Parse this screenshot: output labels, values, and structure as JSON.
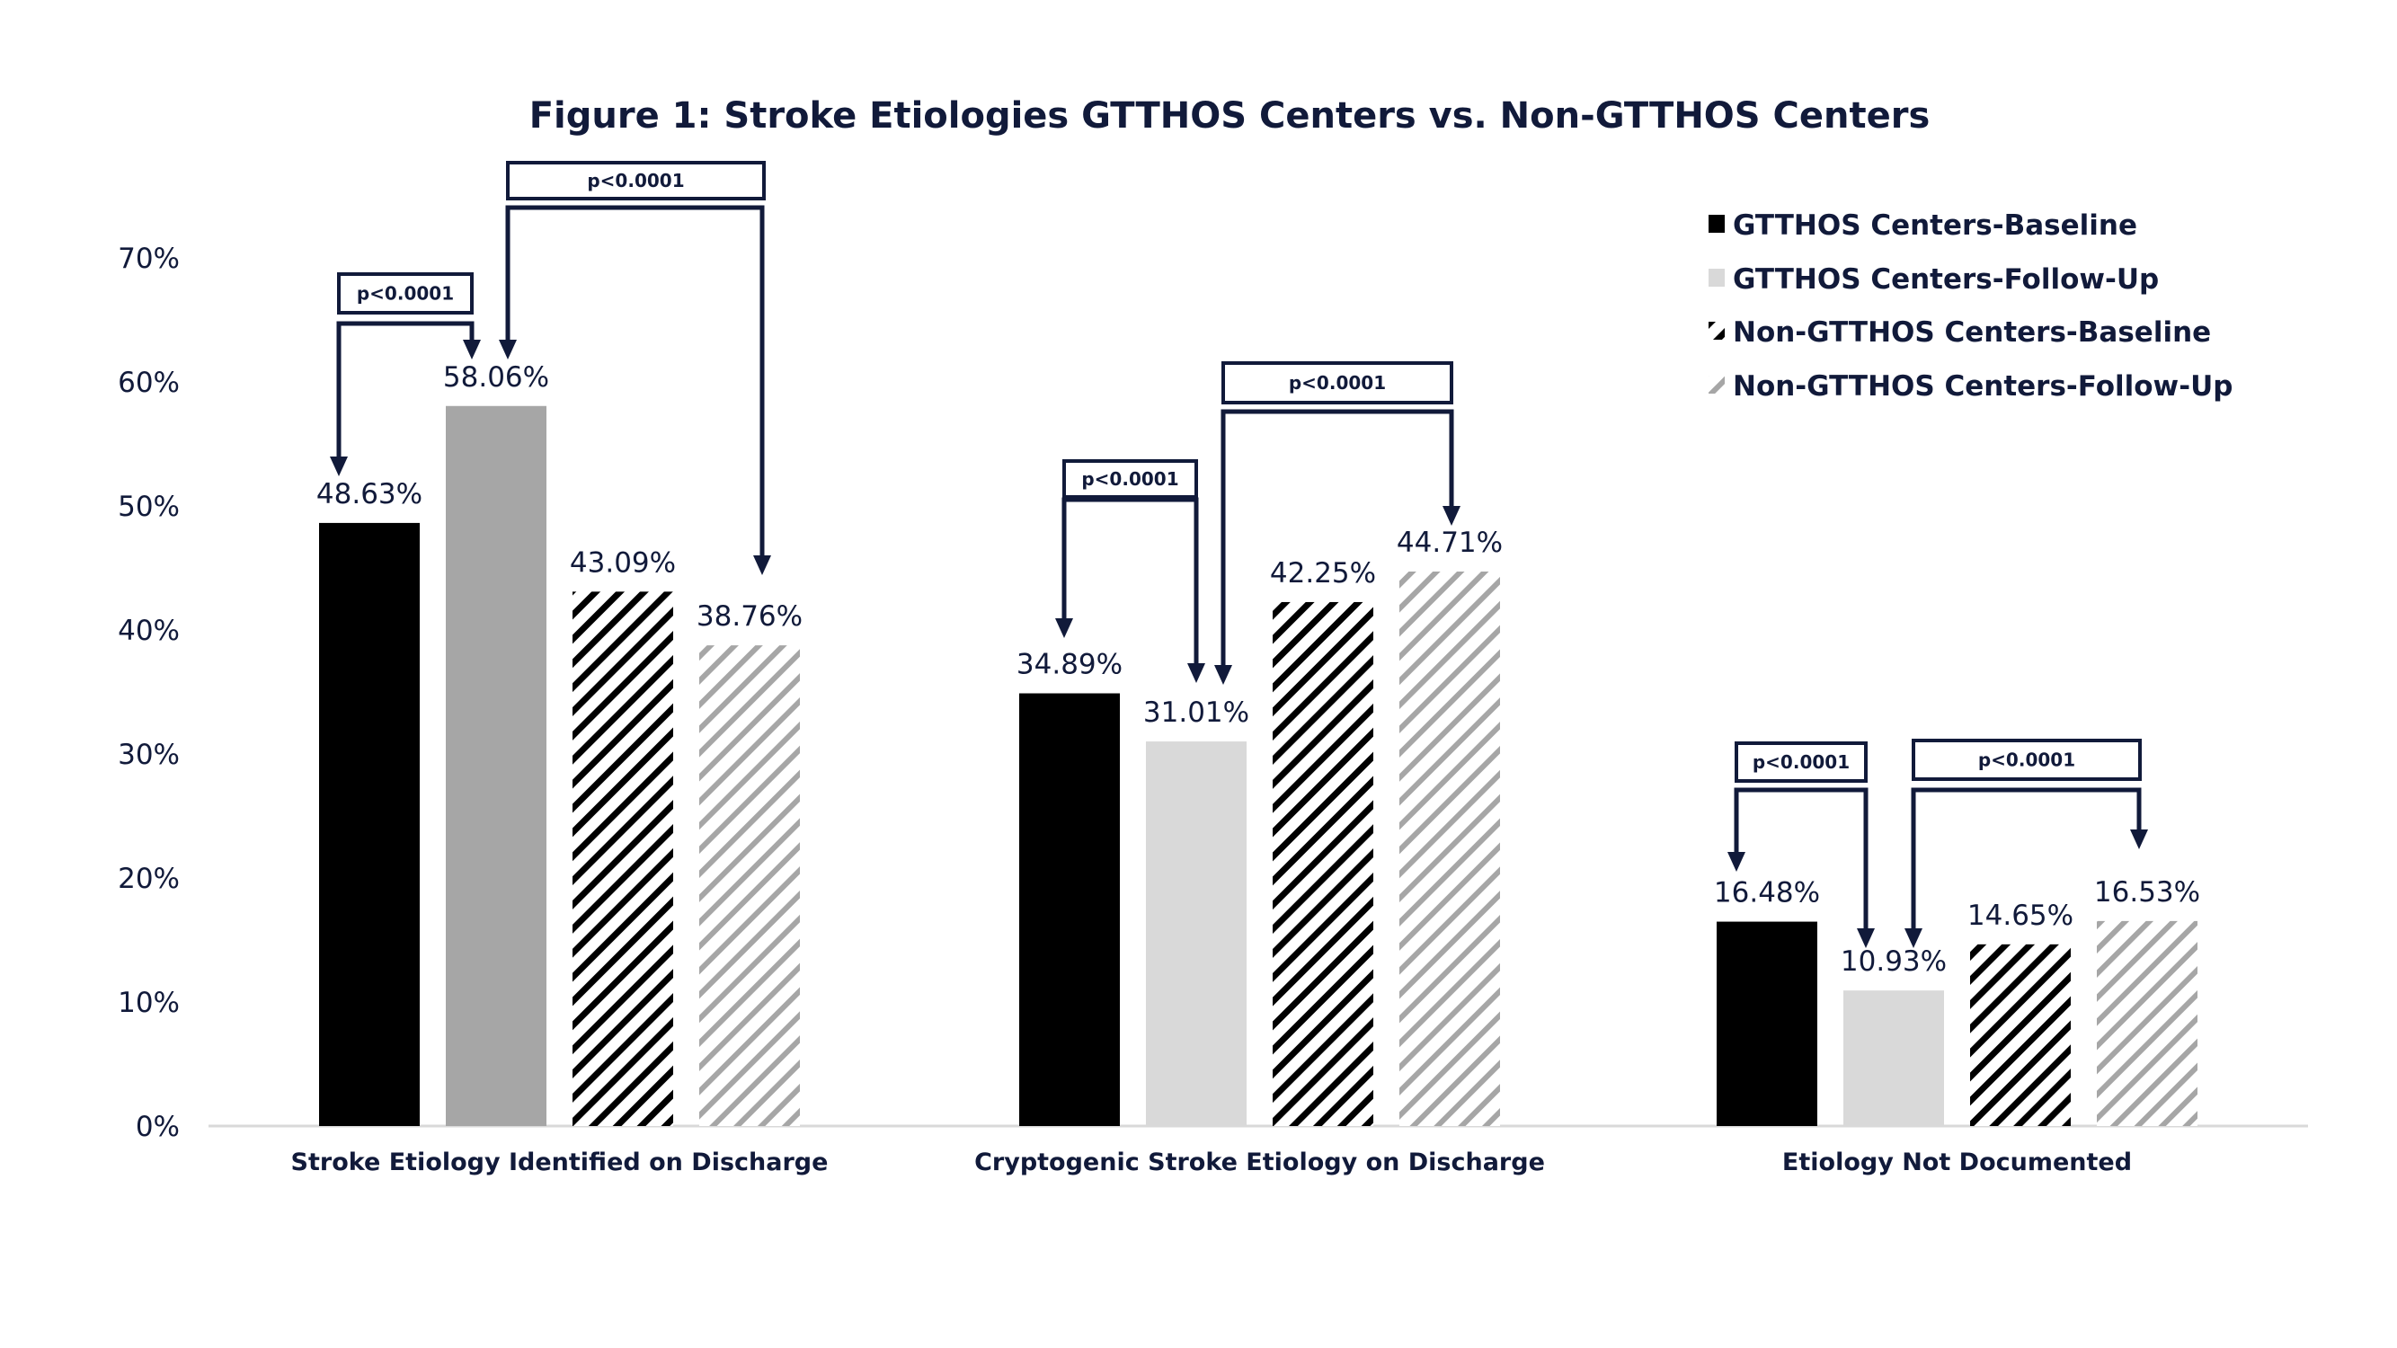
{
  "chart_data": {
    "type": "bar",
    "title": "Figure 1: Stroke Etiologies GTTHOS Centers vs. Non-GTTHOS Centers",
    "xlabel": "",
    "ylabel": "",
    "ylim": [
      0,
      70
    ],
    "yticks": [
      "0%",
      "10%",
      "20%",
      "30%",
      "40%",
      "50%",
      "60%",
      "70%"
    ],
    "ytick_values": [
      0,
      10,
      20,
      30,
      40,
      50,
      60,
      70
    ],
    "grid": false,
    "legend_position": "top-right",
    "categories": [
      "Stroke Etiology Identified on Discharge",
      "Cryptogenic Stroke Etiology on Discharge",
      "Etiology Not Documented"
    ],
    "series": [
      {
        "name": "GTTHOS Centers-Baseline",
        "values": [
          48.63,
          34.89,
          16.48
        ],
        "labels": [
          "48.63%",
          "34.89%",
          "16.48%"
        ],
        "color": "#000000",
        "pattern": "solid"
      },
      {
        "name": "GTTHOS Centers-Follow-Up",
        "values": [
          58.06,
          31.01,
          10.93
        ],
        "labels": [
          "58.06%",
          "31.01%",
          "10.93%"
        ],
        "color": "#d9d9d9",
        "pattern": "solid",
        "first_bar_color": "#a6a6a6"
      },
      {
        "name": "Non-GTTHOS Centers-Baseline",
        "values": [
          43.09,
          42.25,
          14.65
        ],
        "labels": [
          "43.09%",
          "42.25%",
          "14.65%"
        ],
        "color": "#000000",
        "pattern": "diagonal-stripes"
      },
      {
        "name": "Non-GTTHOS Centers-Follow-Up",
        "values": [
          38.76,
          44.71,
          16.53
        ],
        "labels": [
          "38.76%",
          "44.71%",
          "16.53%"
        ],
        "color": "#a6a6a6",
        "pattern": "diagonal-stripes"
      }
    ],
    "annotations": [
      {
        "group": 0,
        "from_series": 0,
        "to_series": 1,
        "text": "p<0.0001",
        "level": "low"
      },
      {
        "group": 0,
        "from_series": 1,
        "to_series": 3,
        "text": "p<0.0001",
        "level": "high"
      },
      {
        "group": 1,
        "from_series": 0,
        "to_series": 1,
        "text": "p<0.0001",
        "level": "low"
      },
      {
        "group": 1,
        "from_series": 1,
        "to_series": 3,
        "text": "p<0.0001",
        "level": "high"
      },
      {
        "group": 2,
        "from_series": 0,
        "to_series": 1,
        "text": "p<0.0001",
        "level": "low"
      },
      {
        "group": 2,
        "from_series": 1,
        "to_series": 3,
        "text": "p<0.0001",
        "level": "low"
      }
    ]
  },
  "colors": {
    "text": "#111a3a",
    "axis": "#d9d9d9",
    "annotation": "#111a3a"
  }
}
